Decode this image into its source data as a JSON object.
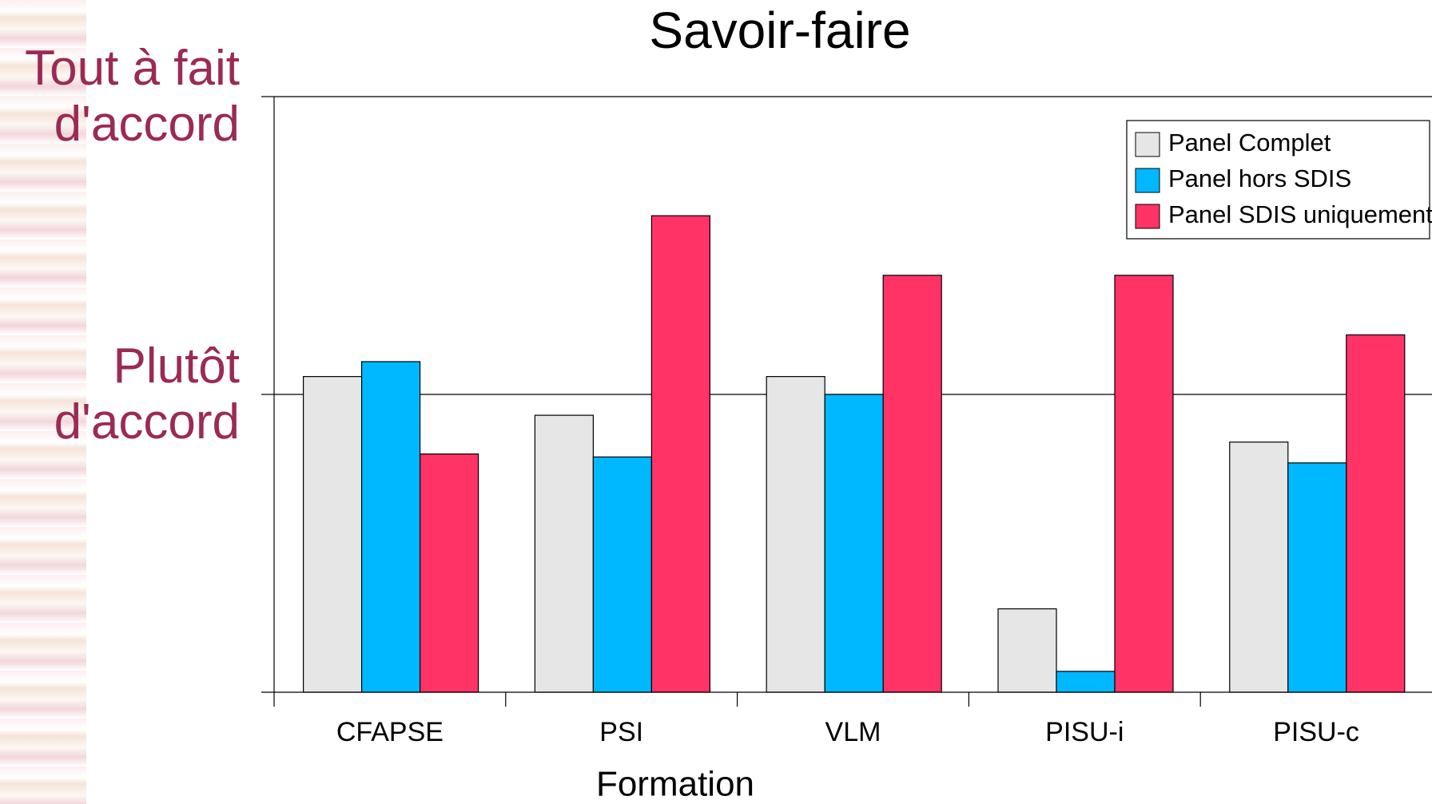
{
  "chart_data": {
    "type": "bar",
    "title": "Savoir-faire",
    "x_label": "Formation",
    "categories": [
      "CFAPSE",
      "PSI",
      "VLM",
      "PISU-i",
      "PISU-c"
    ],
    "series": [
      {
        "name": "Panel Complet",
        "color": "#e6e6e6",
        "values": [
          3.06,
          2.93,
          3.06,
          2.28,
          2.84
        ]
      },
      {
        "name": "Panel hors SDIS",
        "color": "#00b8ff",
        "values": [
          3.11,
          2.79,
          3.0,
          2.07,
          2.77
        ]
      },
      {
        "name": "Panel SDIS uniquement",
        "color": "#ff3366",
        "values": [
          2.8,
          3.6,
          3.4,
          3.4,
          3.2
        ]
      }
    ],
    "ylim": [
      2,
      4
    ],
    "yticks": [
      {
        "value": 3,
        "label": "Plutôt d'accord"
      },
      {
        "value": 4,
        "label": "Tout à fait d'accord"
      }
    ],
    "grid": true,
    "legend": "upper right"
  }
}
